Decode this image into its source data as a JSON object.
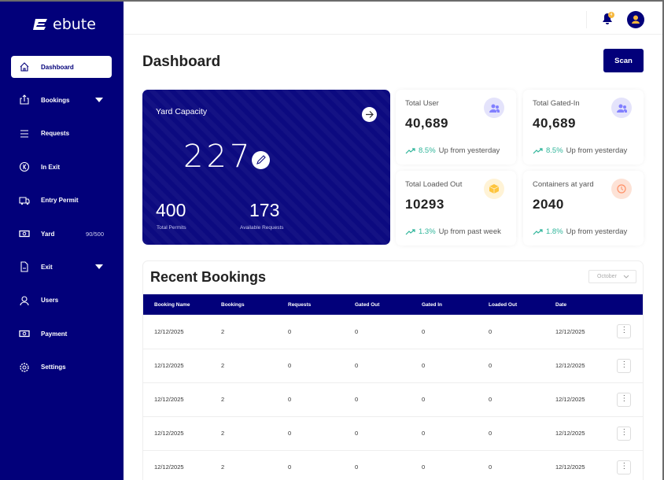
{
  "app": {
    "logo": "ebute"
  },
  "sidebar": {
    "items": [
      {
        "label": "Dashboard",
        "icon": "home-icon",
        "active": true
      },
      {
        "label": "Bookings",
        "icon": "upload-icon",
        "caret": true
      },
      {
        "label": "Requests",
        "icon": "list-icon"
      },
      {
        "label": "In Exit",
        "icon": "circle-back-icon"
      },
      {
        "label": "Entry Permit",
        "icon": "truck-icon"
      },
      {
        "label": "Yard",
        "icon": "cash-icon",
        "extra": "90/500"
      },
      {
        "label": "Exit",
        "icon": "file-icon",
        "caret": true
      },
      {
        "label": "Users",
        "icon": "user-icon"
      },
      {
        "label": "Payment",
        "icon": "cash-icon"
      },
      {
        "label": "Settings",
        "icon": "gear-icon"
      }
    ]
  },
  "topbar": {
    "notification_count": "4"
  },
  "page": {
    "title": "Dashboard",
    "scan_label": "Scan"
  },
  "yard": {
    "title": "Yard Capacity",
    "value": "227",
    "total_permits": "400",
    "total_permits_label": "Total Permits",
    "available": "173",
    "available_label": "Available Requests"
  },
  "cards": [
    {
      "title": "Total User",
      "value": "40,689",
      "pct": "8.5%",
      "trend": "Up from yesterday",
      "icon": "users-icon",
      "bg": "#e4e3fb",
      "fg": "#8280ff"
    },
    {
      "title": "Total Gated-In",
      "value": "40,689",
      "pct": "8.5%",
      "trend": "Up from yesterday",
      "icon": "users-icon",
      "bg": "#e4e3fb",
      "fg": "#8280ff"
    },
    {
      "title": "Total Loaded Out",
      "value": "10293",
      "pct": "1.3%",
      "trend": "Up from past week",
      "icon": "box-icon",
      "bg": "#fff3d6",
      "fg": "#fec53d"
    },
    {
      "title": "Containers at yard",
      "value": "2040",
      "pct": "1.8%",
      "trend": "Up from yesterday",
      "icon": "clock-icon",
      "bg": "#fde2d6",
      "fg": "#ff9066"
    }
  ],
  "bookings": {
    "title": "Recent Bookings",
    "month": "October",
    "columns": [
      "Booking Name",
      "Bookings",
      "Requests",
      "Gated Out",
      "Gated In",
      "Loaded Out",
      "Date"
    ],
    "rows": [
      [
        "12/12/2025",
        "2",
        "0",
        "0",
        "0",
        "0",
        "12/12/2025"
      ],
      [
        "12/12/2025",
        "2",
        "0",
        "0",
        "0",
        "0",
        "12/12/2025"
      ],
      [
        "12/12/2025",
        "2",
        "0",
        "0",
        "0",
        "0",
        "12/12/2025"
      ],
      [
        "12/12/2025",
        "2",
        "0",
        "0",
        "0",
        "0",
        "12/12/2025"
      ],
      [
        "12/12/2025",
        "2",
        "0",
        "0",
        "0",
        "0",
        "12/12/2025"
      ]
    ]
  }
}
